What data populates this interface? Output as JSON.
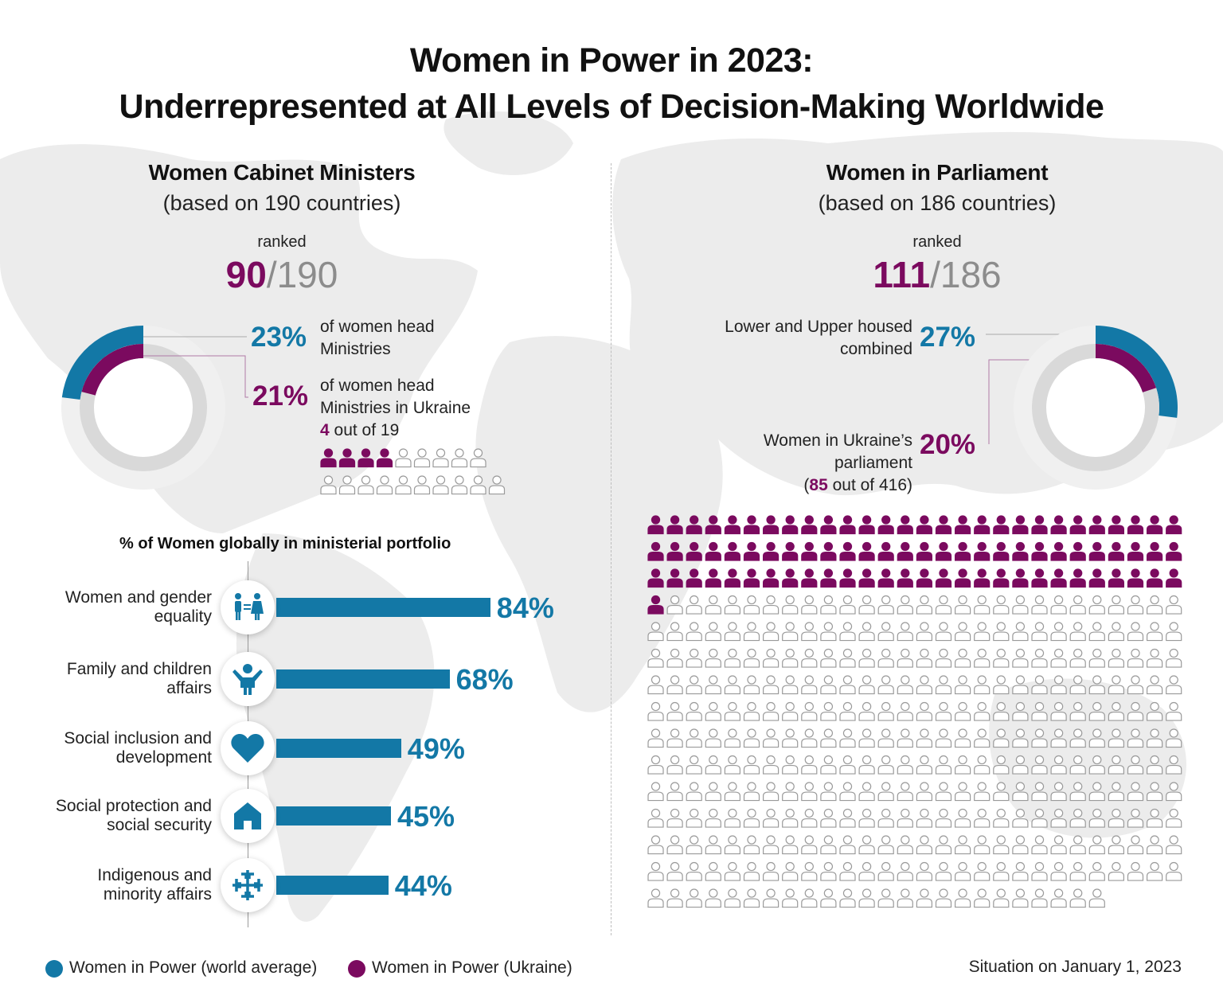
{
  "title": {
    "line1": "Women in Power in 2023:",
    "line2": "Underrepresented at All Levels of Decision-Making Worldwide"
  },
  "cabinet": {
    "title": "Women Cabinet Ministers",
    "subtitle": "(based on 190 countries)",
    "ranked_label": "ranked",
    "rank": "90",
    "rank_sep": "/",
    "rank_total": "190",
    "world_pct": "23%",
    "world_desc_1": "of women head",
    "world_desc_2": "Ministries",
    "ukraine_pct": "21%",
    "ukraine_desc_1": "of women head",
    "ukraine_desc_2": "Ministries in Ukraine",
    "ukraine_count": "4",
    "ukraine_count_suffix": " out of 19",
    "world_fraction": 0.23,
    "ukraine_fraction": 0.21,
    "people_filled": 4,
    "people_total": 19
  },
  "parliament": {
    "title": "Women in Parliament",
    "subtitle": "(based on 186 countries)",
    "ranked_label": "ranked",
    "rank": "111",
    "rank_sep": "/",
    "rank_total": "186",
    "world_desc_1": "Lower and Upper housed",
    "world_desc_2": "combined",
    "world_pct": "27%",
    "ukraine_desc_1": "Women in Ukraine’s",
    "ukraine_desc_2": "parliament",
    "ukraine_desc_3_open": "(",
    "ukraine_count": "85",
    "ukraine_desc_3_close": " out of 416)",
    "ukraine_pct": "20%",
    "world_fraction": 0.27,
    "ukraine_fraction": 0.2,
    "people_filled": 85,
    "people_total": 416
  },
  "chart_data": {
    "type": "bar",
    "title": "% of Women globally in ministerial portfolio",
    "categories": [
      "Women and gender equality",
      "Family and children affairs",
      "Social inclusion and development",
      "Social protection and social security",
      "Indigenous and minority affairs"
    ],
    "category_lines": [
      [
        "Women and gender",
        "equality"
      ],
      [
        "Family and children",
        "affairs"
      ],
      [
        "Social inclusion and",
        "development"
      ],
      [
        "Social protection and",
        "social security"
      ],
      [
        "Indigenous and",
        "minority affairs"
      ]
    ],
    "values": [
      84,
      68,
      49,
      45,
      44
    ],
    "value_labels": [
      "84%",
      "68%",
      "49%",
      "45%",
      "44%"
    ],
    "icons": [
      "gender-equality-icon",
      "child-icon",
      "heart-icon",
      "house-icon",
      "ornament-icon"
    ],
    "orientation": "horizontal",
    "xlim": [
      0,
      100
    ]
  },
  "legend": {
    "world": "Women in Power (world average)",
    "ukraine": "Women in Power (Ukraine)"
  },
  "footnote": "Situation on January 1, 2023",
  "colors": {
    "blue": "#1378a6",
    "purple": "#7b0a5f",
    "gray": "#8c8c8c"
  }
}
